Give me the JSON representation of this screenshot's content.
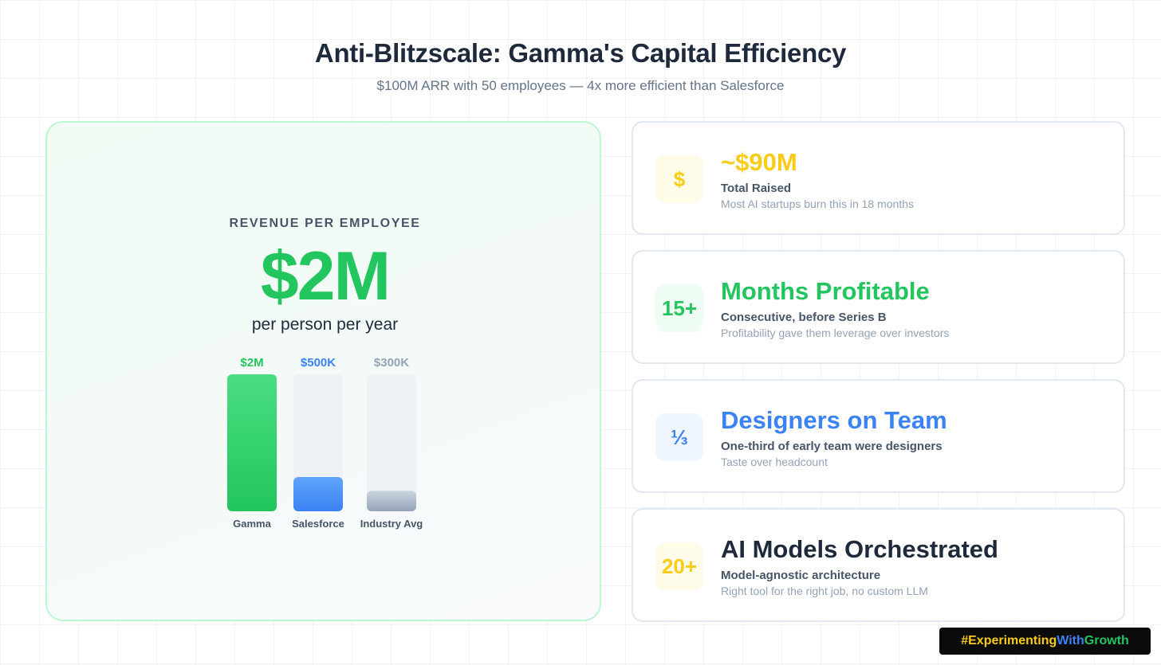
{
  "header": {
    "title": "Anti-Blitzscale: Gamma's Capital Efficiency",
    "subtitle": "$100M ARR with 50 employees — 4x more efficient than Salesforce"
  },
  "hero": {
    "label": "REVENUE PER EMPLOYEE",
    "value": "$2M",
    "unit": "per person per year"
  },
  "chart_data": {
    "type": "bar",
    "title": "",
    "xlabel": "",
    "ylabel": "",
    "categories": [
      "Gamma",
      "Salesforce",
      "Industry Avg"
    ],
    "values": [
      2000000,
      500000,
      300000
    ],
    "value_labels": [
      "$2M",
      "$500K",
      "$300K"
    ],
    "ylim": [
      0,
      2000000
    ],
    "grid": false,
    "colors": [
      "#22c55e",
      "#3b82f6",
      "#94a3b8"
    ],
    "label_colors": [
      "#22c55e",
      "#3b82f6",
      "#94a3b8"
    ]
  },
  "cards": [
    {
      "icon": "$",
      "icon_name": "dollar-icon",
      "value": "~$90M",
      "label": "Total Raised",
      "desc": "Most AI startups burn this in 18 months",
      "color": "#facc15",
      "icon_bg": "#fefce8"
    },
    {
      "icon": "15+",
      "icon_name": "fifteen-plus-icon",
      "value": "Months Profitable",
      "label": "Consecutive, before Series B",
      "desc": "Profitability gave them leverage over investors",
      "color": "#22c55e",
      "icon_bg": "#f0fdf4"
    },
    {
      "icon": "⅓",
      "icon_name": "one-third-icon",
      "value": "Designers on Team",
      "label": "One-third of early team were designers",
      "desc": "Taste over headcount",
      "color": "#3b82f6",
      "icon_bg": "#eff6ff"
    },
    {
      "icon": "20+",
      "icon_name": "twenty-plus-icon",
      "value": "AI Models Orchestrated",
      "label": "Model-agnostic architecture",
      "desc": "Right tool for the right job, no custom LLM",
      "color": "#1e293b",
      "icon_bg": "#fefce8",
      "icon_color": "#facc15"
    }
  ],
  "hashtag": {
    "part1": "#Experimenting",
    "part2": "With",
    "part3": "Growth",
    "colors": [
      "#facc15",
      "#3b82f6",
      "#22c55e"
    ]
  }
}
